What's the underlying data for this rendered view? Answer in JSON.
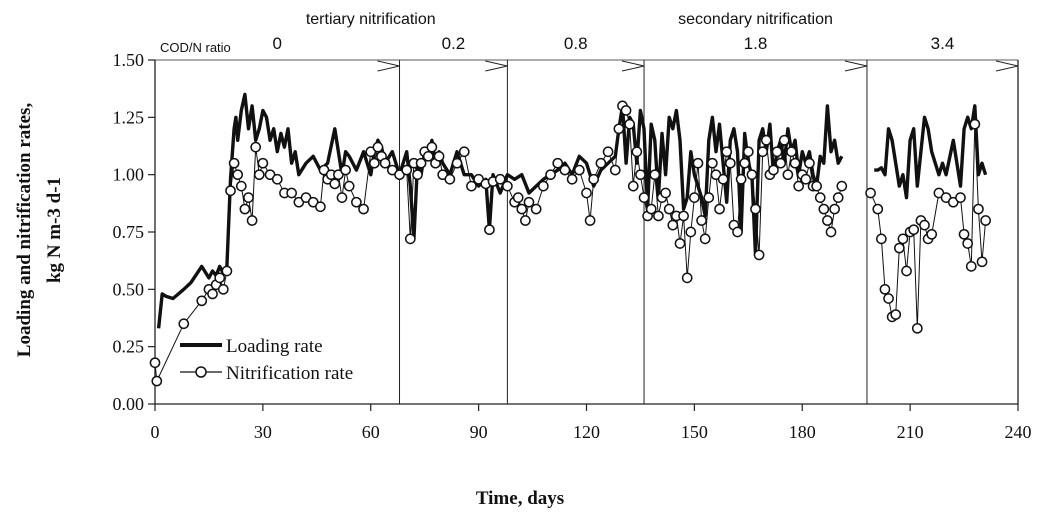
{
  "chart_data": {
    "type": "line",
    "xlabel": "Time, days",
    "ylabel_line1": "Loading and nitrification rates,",
    "ylabel_line2": "kg N m-3 d-1",
    "xlim": [
      0,
      240
    ],
    "ylim": [
      0,
      1.5
    ],
    "xticks": [
      0,
      30,
      60,
      90,
      120,
      150,
      180,
      210,
      240
    ],
    "yticks": [
      0.0,
      0.25,
      0.5,
      0.75,
      1.0,
      1.25,
      1.5
    ],
    "ytick_labels": [
      "0.00",
      "0.25",
      "0.50",
      "0.75",
      "1.00",
      "1.25",
      "1.50"
    ],
    "phase_labels": [
      {
        "text": "tertiary nitrification",
        "x": 60
      },
      {
        "text": "secondary nitrification",
        "x": 167
      }
    ],
    "cod_ratio_label": "COD/N ratio",
    "periods": [
      {
        "ratio": "0",
        "start": 0,
        "end": 68
      },
      {
        "ratio": "0.2",
        "start": 68,
        "end": 98
      },
      {
        "ratio": "0.8",
        "start": 98,
        "end": 136
      },
      {
        "ratio": "1.8",
        "start": 136,
        "end": 198
      },
      {
        "ratio": "3.4",
        "start": 198,
        "end": 240
      }
    ],
    "legend": {
      "placement": "lower-left"
    },
    "series": [
      {
        "name": "Loading rate",
        "style": "thick-line",
        "x": [
          1,
          2,
          3,
          5,
          8,
          10,
          13,
          15,
          16,
          17,
          18,
          19,
          20,
          21,
          22,
          22.5,
          23,
          24,
          25,
          26,
          27,
          28,
          29,
          30,
          31,
          32,
          33,
          34,
          35,
          36,
          37,
          38,
          39,
          40,
          42,
          44,
          46,
          48,
          50,
          52,
          53,
          54,
          56,
          58,
          60,
          61,
          62,
          63,
          64,
          66,
          68,
          70,
          71,
          72,
          73,
          74,
          75,
          76,
          77,
          78,
          79,
          80,
          82,
          84,
          86,
          88,
          90,
          92,
          93,
          94,
          96,
          98,
          100,
          102,
          104,
          106,
          108,
          110,
          112,
          114,
          116,
          118,
          120,
          122,
          124,
          126,
          128,
          129,
          130,
          131,
          132,
          133,
          134,
          135,
          136,
          137,
          138,
          139,
          140,
          141,
          142,
          143,
          144,
          145,
          146,
          147,
          148,
          149,
          150,
          151,
          152,
          153,
          154,
          155,
          156,
          157,
          158,
          159,
          160,
          161,
          162,
          163,
          164,
          165,
          166,
          167,
          168,
          169,
          170,
          171,
          172,
          173,
          174,
          175,
          176,
          177,
          178,
          179,
          180,
          181,
          182,
          183,
          184,
          185,
          186,
          187,
          188,
          189,
          190,
          191
        ],
        "values": [
          0.33,
          0.48,
          0.47,
          0.46,
          0.5,
          0.53,
          0.6,
          0.55,
          0.58,
          0.56,
          0.6,
          0.57,
          0.6,
          0.98,
          1.2,
          1.25,
          1.15,
          1.28,
          1.35,
          1.2,
          1.3,
          1.15,
          1.2,
          1.28,
          1.25,
          1.15,
          1.2,
          1.1,
          1.18,
          1.12,
          1.2,
          1.05,
          1.1,
          1.0,
          1.05,
          1.08,
          1.02,
          1.05,
          1.2,
          1.0,
          1.1,
          1.08,
          1.02,
          1.1,
          1.0,
          1.1,
          1.15,
          1.12,
          1.05,
          1.1,
          1.0,
          1.1,
          0.95,
          0.72,
          1.05,
          1.0,
          1.1,
          1.08,
          1.15,
          1.05,
          1.1,
          1.05,
          1.0,
          1.1,
          1.0,
          1.0,
          0.95,
          0.98,
          0.76,
          1.0,
          0.92,
          1.0,
          0.98,
          1.0,
          0.92,
          0.95,
          0.98,
          1.0,
          1.02,
          1.05,
          1.0,
          1.08,
          1.05,
          0.95,
          1.02,
          1.05,
          1.08,
          1.2,
          1.3,
          1.05,
          1.25,
          1.22,
          1.05,
          1.28,
          1.2,
          0.85,
          1.22,
          1.15,
          0.9,
          1.18,
          1.0,
          1.25,
          1.2,
          1.28,
          1.15,
          0.85,
          0.9,
          1.1,
          1.0,
          0.95,
          0.9,
          0.82,
          1.15,
          1.25,
          1.1,
          1.22,
          1.05,
          0.88,
          1.15,
          1.2,
          1.1,
          0.75,
          1.18,
          1.05,
          1.0,
          0.65,
          1.15,
          1.2,
          1.1,
          1.22,
          1.0,
          1.1,
          1.15,
          1.05,
          1.2,
          1.1,
          1.15,
          1.0,
          1.1,
          1.05,
          1.1,
          1.0,
          0.95,
          1.08,
          1.05,
          1.3,
          1.1,
          1.15,
          1.05,
          1.08
        ],
        "segments": [
          [
            0,
            148
          ]
        ]
      },
      {
        "name": "Loading rate (cont.)",
        "style": "thick-line",
        "x": [
          200,
          201,
          202,
          203,
          204,
          205,
          206,
          207,
          208,
          209,
          210,
          211,
          212,
          213,
          214,
          215,
          216,
          217,
          218,
          219,
          220,
          222,
          224,
          225,
          226,
          227,
          228,
          229,
          230,
          231
        ],
        "values": [
          1.02,
          1.02,
          1.03,
          1.0,
          1.2,
          1.15,
          1.05,
          0.95,
          1.0,
          0.9,
          1.15,
          1.2,
          0.95,
          1.1,
          1.25,
          1.2,
          1.1,
          1.05,
          1.0,
          1.05,
          1.0,
          1.15,
          0.95,
          1.2,
          1.25,
          1.2,
          1.3,
          1.0,
          1.05,
          1.0
        ]
      },
      {
        "name": "Nitrification rate",
        "style": "thin-line-circles",
        "x": [
          0,
          0.5,
          8,
          13,
          15,
          16,
          17,
          18,
          19,
          20,
          21,
          22,
          23,
          24,
          25,
          26,
          27,
          28,
          29,
          30,
          32,
          34,
          36,
          38,
          40,
          42,
          44,
          46,
          47,
          48,
          49,
          50,
          51,
          52,
          53,
          54,
          56,
          58,
          60,
          61,
          62,
          63,
          64,
          66,
          68,
          70,
          71,
          72,
          73,
          74,
          75,
          76,
          77,
          78,
          79,
          80,
          82,
          84,
          86,
          88,
          90,
          92,
          93,
          94,
          96,
          98,
          100,
          101,
          102,
          103,
          104,
          106,
          108,
          110,
          112,
          114,
          116,
          118,
          120,
          121,
          122,
          124,
          126,
          128,
          129,
          130,
          131,
          132,
          133,
          134,
          135,
          136,
          137,
          138,
          139,
          140,
          141,
          142,
          143,
          144,
          145,
          146,
          147,
          148,
          149,
          150,
          151,
          152,
          153,
          154,
          155,
          156,
          157,
          158,
          159,
          160,
          161,
          162,
          163,
          164,
          165,
          166,
          167,
          168,
          169,
          170,
          171,
          172,
          173,
          174,
          175,
          176,
          177,
          178,
          179,
          180,
          181,
          182,
          183,
          184,
          185,
          186,
          187,
          188,
          189,
          190,
          191
        ],
        "values": [
          0.18,
          0.1,
          0.35,
          0.45,
          0.5,
          0.48,
          0.52,
          0.55,
          0.5,
          0.58,
          0.93,
          1.05,
          1.0,
          0.95,
          0.85,
          0.9,
          0.8,
          1.12,
          1.0,
          1.05,
          1.0,
          0.98,
          0.92,
          0.92,
          0.88,
          0.9,
          0.88,
          0.86,
          1.02,
          0.98,
          1.0,
          0.96,
          1.0,
          0.9,
          1.02,
          0.95,
          0.88,
          0.85,
          1.1,
          1.05,
          1.12,
          1.08,
          1.05,
          1.02,
          1.0,
          1.02,
          0.72,
          1.05,
          1.0,
          1.05,
          1.1,
          1.08,
          1.12,
          1.05,
          1.08,
          1.0,
          0.98,
          1.05,
          1.1,
          0.95,
          0.98,
          0.96,
          0.76,
          0.97,
          0.98,
          0.95,
          0.88,
          0.9,
          0.85,
          0.8,
          0.88,
          0.85,
          0.95,
          1.0,
          1.05,
          1.02,
          0.98,
          1.02,
          0.92,
          0.8,
          0.98,
          1.05,
          1.1,
          1.02,
          1.2,
          1.3,
          1.28,
          1.22,
          0.95,
          1.1,
          1.0,
          0.9,
          0.82,
          0.85,
          1.0,
          0.82,
          0.9,
          0.92,
          0.85,
          0.78,
          0.82,
          0.7,
          0.82,
          0.55,
          0.75,
          0.9,
          1.05,
          0.8,
          0.72,
          0.9,
          1.05,
          1.0,
          0.85,
          0.98,
          1.1,
          1.05,
          0.78,
          0.75,
          0.98,
          1.05,
          1.1,
          1.0,
          0.85,
          0.65,
          1.1,
          1.15,
          1.0,
          1.02,
          1.1,
          1.05,
          1.15,
          1.0,
          1.1,
          1.05,
          0.95,
          1.0,
          0.98,
          1.05,
          0.95,
          0.95,
          0.9,
          0.85,
          0.8,
          0.75,
          0.85,
          0.9,
          0.95
        ],
        "segments": [
          [
            0,
            2
          ],
          [
            2,
            147
          ]
        ]
      },
      {
        "name": "Nitrification rate (cont.)",
        "style": "thin-line-circles",
        "x": [
          199,
          201,
          202,
          203,
          204,
          205,
          206,
          207,
          208,
          209,
          210,
          211,
          212,
          213,
          214,
          215,
          216,
          218,
          220,
          222,
          224,
          225,
          226,
          227,
          228,
          229,
          230,
          231
        ],
        "values": [
          0.92,
          0.85,
          0.72,
          0.5,
          0.46,
          0.38,
          0.39,
          0.68,
          0.72,
          0.58,
          0.75,
          0.76,
          0.33,
          0.8,
          0.78,
          0.72,
          0.74,
          0.92,
          0.9,
          0.88,
          0.9,
          0.74,
          0.7,
          0.6,
          1.22,
          0.85,
          0.62,
          0.8
        ]
      }
    ]
  },
  "legend": {
    "loading": "Loading rate",
    "nitrification": "Nitrification rate"
  },
  "colors": {
    "ink": "#111111",
    "axis": "#222222",
    "background": "#ffffff"
  }
}
